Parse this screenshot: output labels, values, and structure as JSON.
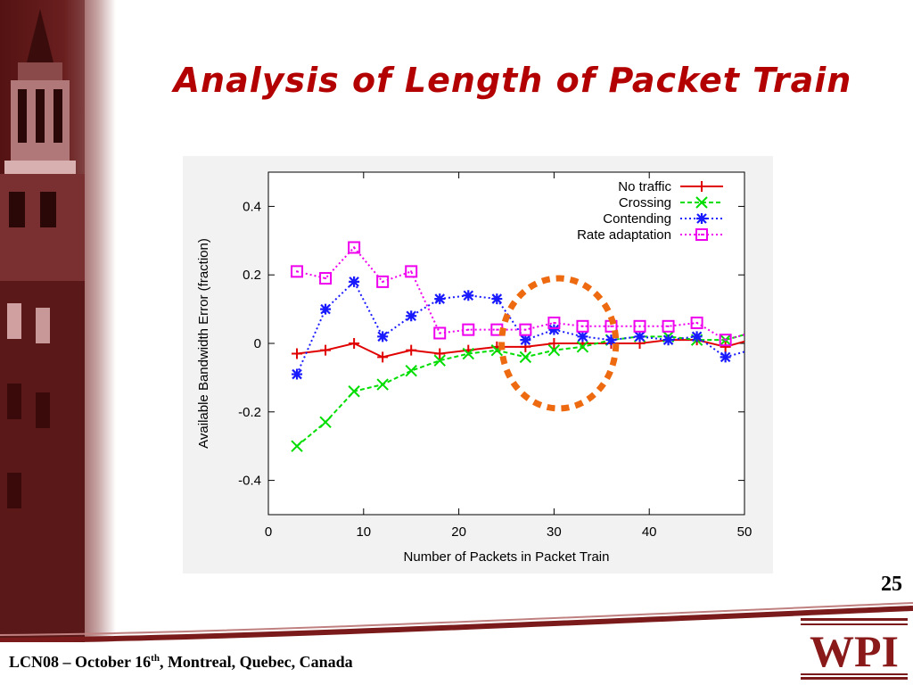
{
  "slide": {
    "title": "Analysis of Length of Packet Train",
    "page_number": "25",
    "footer": {
      "pre": "LCN08 – October 16",
      "sup": "th",
      "post": ", Montreal, Quebec, Canada"
    },
    "logo_text": "WPI"
  },
  "colors": {
    "title": "#b30000",
    "no_traffic": "#e00000",
    "crossing": "#00dd00",
    "contending": "#1a1aff",
    "rate_adaptation": "#ee00ee",
    "highlight_circle": "#ee6a10",
    "sidebar": "#6b1a1a"
  },
  "chart_data": {
    "type": "line",
    "xlabel": "Number of Packets in Packet Train",
    "ylabel": "Available Bandwidth Error (fraction)",
    "xlim": [
      0,
      50
    ],
    "ylim": [
      -0.5,
      0.5
    ],
    "x_ticks": [
      "0",
      "10",
      "20",
      "30",
      "40",
      "50"
    ],
    "y_ticks": [
      "-0.4",
      "-0.2",
      "0",
      "0.2",
      "0.4"
    ],
    "x_tick_values": [
      0,
      10,
      20,
      30,
      40,
      50
    ],
    "y_tick_values": [
      -0.4,
      -0.2,
      0,
      0.2,
      0.4
    ],
    "grid": false,
    "legend_position": "top-right",
    "series": [
      {
        "name": "No traffic",
        "marker": "plus",
        "line": "solid",
        "x": [
          3,
          6,
          9,
          12,
          15,
          18,
          21,
          24,
          27,
          30,
          33,
          36,
          39,
          42,
          45,
          48
        ],
        "y": [
          -0.03,
          -0.02,
          0.0,
          -0.04,
          -0.02,
          -0.03,
          -0.02,
          -0.01,
          -0.01,
          0.0,
          0.0,
          0.0,
          0.0,
          0.01,
          0.01,
          -0.01
        ]
      },
      {
        "name": "Crossing",
        "marker": "x",
        "line": "dashed",
        "x": [
          3,
          6,
          9,
          12,
          15,
          18,
          21,
          24,
          27,
          30,
          33,
          36,
          39,
          42,
          45,
          48
        ],
        "y": [
          -0.3,
          -0.23,
          -0.14,
          -0.12,
          -0.08,
          -0.05,
          -0.03,
          -0.02,
          -0.04,
          -0.02,
          -0.01,
          0.01,
          0.02,
          0.02,
          0.01,
          0.01
        ]
      },
      {
        "name": "Contending",
        "marker": "star",
        "line": "dotted",
        "x": [
          3,
          6,
          9,
          12,
          15,
          18,
          21,
          24,
          27,
          30,
          33,
          36,
          39,
          42,
          45,
          48
        ],
        "y": [
          -0.09,
          0.1,
          0.18,
          0.02,
          0.08,
          0.13,
          0.14,
          0.13,
          0.01,
          0.04,
          0.02,
          0.01,
          0.02,
          0.01,
          0.02,
          -0.04
        ]
      },
      {
        "name": "Rate adaptation",
        "marker": "square",
        "line": "dotted",
        "x": [
          3,
          6,
          9,
          12,
          15,
          18,
          21,
          24,
          27,
          30,
          33,
          36,
          39,
          42,
          45,
          48
        ],
        "y": [
          0.21,
          0.19,
          0.28,
          0.18,
          0.21,
          0.03,
          0.04,
          0.04,
          0.04,
          0.06,
          0.05,
          0.05,
          0.05,
          0.05,
          0.06,
          0.01
        ]
      }
    ],
    "annotation": {
      "shape": "dashed-ellipse",
      "center_x": 30.5,
      "center_y": 0.0,
      "radius_x": 6.0,
      "radius_y": 0.19
    }
  }
}
